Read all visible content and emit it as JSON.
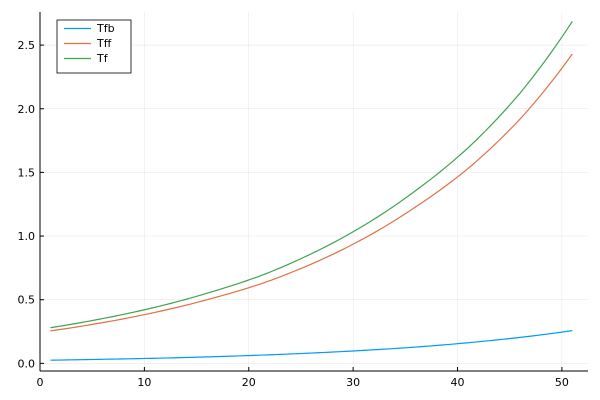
{
  "chart_data": {
    "type": "line",
    "title": "",
    "xlabel": "",
    "ylabel": "",
    "xlim": [
      0,
      52.5
    ],
    "ylim": [
      -0.06,
      2.76
    ],
    "x_ticks": [
      0,
      10,
      20,
      30,
      40,
      50
    ],
    "y_ticks": [
      0.0,
      0.5,
      1.0,
      1.5,
      2.0,
      2.5
    ],
    "x_tick_labels": [
      "0",
      "10",
      "20",
      "30",
      "40",
      "50"
    ],
    "y_tick_labels": [
      "0.0",
      "0.5",
      "1.0",
      "1.5",
      "2.0",
      "2.5"
    ],
    "grid": true,
    "legend": "top-left",
    "x": [
      1,
      6,
      11,
      16,
      21,
      26,
      31,
      36,
      41,
      46,
      51
    ],
    "series": [
      {
        "name": "Tfb",
        "color": "#009AFA",
        "values": [
          0.025,
          0.032,
          0.04,
          0.051,
          0.064,
          0.081,
          0.102,
          0.128,
          0.162,
          0.204,
          0.257
        ]
      },
      {
        "name": "Tff",
        "color": "#E36F47",
        "values": [
          0.255,
          0.32,
          0.4,
          0.5,
          0.62,
          0.78,
          0.98,
          1.23,
          1.53,
          1.92,
          2.43
        ]
      },
      {
        "name": "Tf",
        "color": "#3EA44E",
        "values": [
          0.28,
          0.352,
          0.44,
          0.551,
          0.684,
          0.861,
          1.082,
          1.358,
          1.692,
          2.124,
          2.687
        ]
      }
    ]
  }
}
